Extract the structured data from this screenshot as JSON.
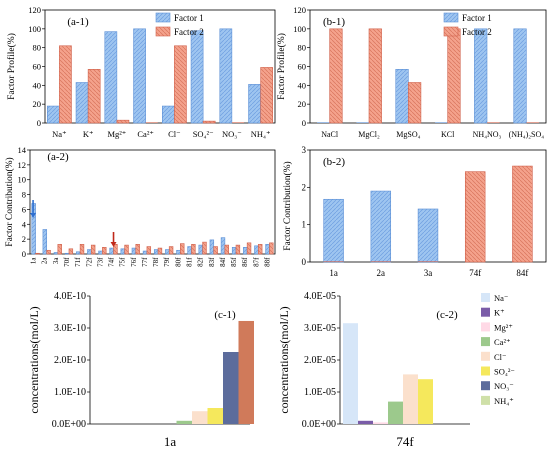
{
  "colors": {
    "factor1": "#9ec5f0",
    "factor1_stroke": "#5b8fd6",
    "factor2": "#f4a28c",
    "factor2_stroke": "#d0604a",
    "arrow_blue": "#2e6fd0",
    "arrow_red": "#c0281a",
    "ions": [
      "#d6e6f8",
      "#7a5ca8",
      "#ffd9e6",
      "#9cc98c",
      "#fbe0cc",
      "#f5e85c",
      "#5c6c9c",
      "#cfe0a8"
    ]
  },
  "chart_data": [
    {
      "id": "a-1",
      "type": "bar",
      "panel_label": "(a-1)",
      "ylabel": "Factor Profile(%)",
      "ylim": [
        0,
        120
      ],
      "yticks": [
        "0",
        "20",
        "40",
        "60",
        "80",
        "100",
        "120"
      ],
      "categories": [
        "Na⁺",
        "K⁺",
        "Mg²⁺",
        "Ca²⁺",
        "Cl⁻",
        "SO₄²⁻",
        "NO₃⁻",
        "NH₄⁺"
      ],
      "series": [
        {
          "name": "Factor 1",
          "values": [
            18,
            43,
            97,
            100,
            18,
            98,
            100,
            41
          ]
        },
        {
          "name": "Factor 2",
          "values": [
            82,
            57,
            3,
            0,
            82,
            2,
            0,
            59
          ]
        }
      ],
      "legend": "top-right"
    },
    {
      "id": "b-1",
      "type": "bar",
      "panel_label": "(b-1)",
      "ylabel": "Factor Profile(%)",
      "ylim": [
        0,
        120
      ],
      "yticks": [
        "0",
        "20",
        "40",
        "60",
        "80",
        "100",
        "120"
      ],
      "categories": [
        "NaCl",
        "MgCl₂",
        "MgSO₄",
        "KCl",
        "NH₄NO₃",
        "(NH₄)₂SO₄"
      ],
      "series": [
        {
          "name": "Factor 1",
          "values": [
            0,
            0,
            57,
            0,
            100,
            100
          ]
        },
        {
          "name": "Factor 2",
          "values": [
            100,
            100,
            43,
            100,
            0,
            0
          ]
        }
      ],
      "legend": "top-right"
    },
    {
      "id": "a-2",
      "type": "bar",
      "panel_label": "(a-2)",
      "ylabel": "Factor Contribution(%)",
      "ylim": [
        0,
        14
      ],
      "yticks": [
        "0",
        "2",
        "4",
        "6",
        "8",
        "10",
        "12",
        "14"
      ],
      "categories": [
        "1a",
        "2a",
        "3a",
        "70f",
        "71f",
        "72f",
        "73f",
        "74f",
        "75f",
        "76f",
        "77f",
        "78f",
        "79f",
        "80f",
        "81f",
        "82f",
        "83f",
        "84f",
        "85f",
        "86f",
        "87f",
        "88f"
      ],
      "series": [
        {
          "name": "Factor 1",
          "values": [
            6.8,
            3.3,
            0.2,
            0.1,
            0.3,
            0.6,
            0.4,
            0.8,
            0.7,
            0.8,
            0.4,
            0.6,
            0.6,
            0.5,
            1.0,
            1.2,
            1.9,
            2.2,
            0.9,
            0.9,
            1.1,
            1.3
          ]
        },
        {
          "name": "Factor 2",
          "values": [
            0.1,
            0.5,
            1.3,
            0.7,
            1.3,
            1.2,
            0.9,
            1.3,
            1.2,
            1.3,
            1.0,
            0.8,
            1.0,
            1.4,
            1.3,
            1.6,
            1.0,
            1.2,
            1.2,
            1.5,
            1.3,
            1.5
          ]
        }
      ],
      "arrows": [
        {
          "category": "1a",
          "color": "blue"
        },
        {
          "category": "74f",
          "color": "red"
        }
      ]
    },
    {
      "id": "b-2",
      "type": "bar",
      "panel_label": "(b-2)",
      "ylabel": "Factor Contribution(%)",
      "ylim": [
        0,
        3
      ],
      "yticks": [
        "0",
        "1",
        "2",
        "3"
      ],
      "categories": [
        "1a",
        "2a",
        "3a",
        "74f",
        "84f"
      ],
      "series": [
        {
          "name": "Factor 1",
          "values": [
            1.68,
            1.9,
            1.42,
            0,
            0
          ]
        },
        {
          "name": "Factor 2",
          "values": [
            0,
            0,
            0,
            2.42,
            2.57
          ]
        }
      ]
    },
    {
      "id": "c-1",
      "type": "bar",
      "panel_label": "(c-1)",
      "ylabel": "concentrations(mol/L)",
      "ylim": [
        0,
        4e-10
      ],
      "yticks": [
        "0.0E+00",
        "1.0E-10",
        "2.0E-10",
        "3.0E-10",
        "4.0E-10"
      ],
      "xlabel": "1a",
      "series_names": [
        "Na⁻",
        "K⁺",
        "Mg²⁺",
        "Ca²⁺",
        "Cl⁻",
        "SO₄²⁻",
        "NO₃⁻",
        "NH₄⁺"
      ],
      "values": [
        0,
        0,
        0,
        1e-11,
        4e-11,
        5e-11,
        2.25e-10,
        3.22e-10
      ],
      "order_colors": [
        0,
        1,
        2,
        3,
        4,
        5,
        6,
        7
      ],
      "bar_colors": [
        "#d6e6f8",
        "#7a5ca8",
        "#ffd9e6",
        "#9cc98c",
        "#fbe0cc",
        "#f5e85c",
        "#5c6c9c",
        "#d07a5a"
      ]
    },
    {
      "id": "c-2",
      "type": "bar",
      "panel_label": "(c-2)",
      "ylabel": "concentrations(mol/L)",
      "ylim": [
        0,
        4e-05
      ],
      "yticks": [
        "0.0E+00",
        "1.0E-05",
        "2.0E-05",
        "3.0E-05",
        "4.0E-05"
      ],
      "xlabel": "74f",
      "values": [
        3.15e-05,
        1e-06,
        5e-07,
        7e-06,
        1.55e-05,
        1.4e-05,
        0,
        0
      ],
      "bar_colors": [
        "#d6e6f8",
        "#7a5ca8",
        "#ffd9e6",
        "#9cc98c",
        "#fbe0cc",
        "#f5e85c",
        "#5c6c9c",
        "#cfe0a8"
      ],
      "legend": {
        "entries": [
          "Na⁻",
          "K⁺",
          "Mg²⁺",
          "Ca²⁺",
          "Cl⁻",
          "SO₄²⁻",
          "NO₃⁻",
          "NH₄⁺"
        ],
        "placement": "right"
      }
    }
  ]
}
